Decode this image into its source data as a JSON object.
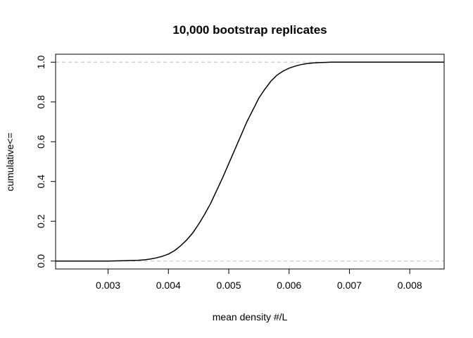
{
  "chart_data": {
    "type": "line",
    "title": "10,000 bootstrap replicates",
    "xlabel": "mean density #/L",
    "ylabel": "cumulative<=",
    "xlim": [
      0.00213,
      0.00857
    ],
    "ylim": [
      -0.04,
      1.04
    ],
    "x_ticks": [
      0.003,
      0.004,
      0.005,
      0.006,
      0.007,
      0.008
    ],
    "x_tick_labels": [
      "0.003",
      "0.004",
      "0.005",
      "0.006",
      "0.007",
      "0.008"
    ],
    "y_ticks": [
      0.0,
      0.2,
      0.4,
      0.6,
      0.8,
      1.0
    ],
    "y_tick_labels": [
      "0.0",
      "0.2",
      "0.4",
      "0.6",
      "0.8",
      "1.0"
    ],
    "reference_lines_y": [
      0.0,
      1.0
    ],
    "grid": false,
    "legend": "none",
    "series": [
      {
        "x": [
          0.00213,
          0.003,
          0.0033,
          0.0035,
          0.0036,
          0.0037,
          0.0038,
          0.0039,
          0.004,
          0.0041,
          0.0042,
          0.0043,
          0.0044,
          0.0045,
          0.0046,
          0.0047,
          0.0048,
          0.0049,
          0.005,
          0.0051,
          0.0052,
          0.0053,
          0.0054,
          0.0055,
          0.0056,
          0.0057,
          0.0058,
          0.0059,
          0.006,
          0.0061,
          0.0062,
          0.0063,
          0.0064,
          0.0065,
          0.0066,
          0.0067,
          0.0068,
          0.007,
          0.0075,
          0.00857
        ],
        "values": [
          0.0,
          0.0,
          0.002,
          0.004,
          0.006,
          0.01,
          0.016,
          0.024,
          0.035,
          0.052,
          0.076,
          0.105,
          0.14,
          0.185,
          0.235,
          0.29,
          0.355,
          0.42,
          0.49,
          0.56,
          0.63,
          0.7,
          0.76,
          0.82,
          0.865,
          0.905,
          0.935,
          0.955,
          0.97,
          0.98,
          0.988,
          0.993,
          0.996,
          0.998,
          0.999,
          1.0,
          1.0,
          1.0,
          1.0,
          1.0
        ]
      }
    ]
  }
}
